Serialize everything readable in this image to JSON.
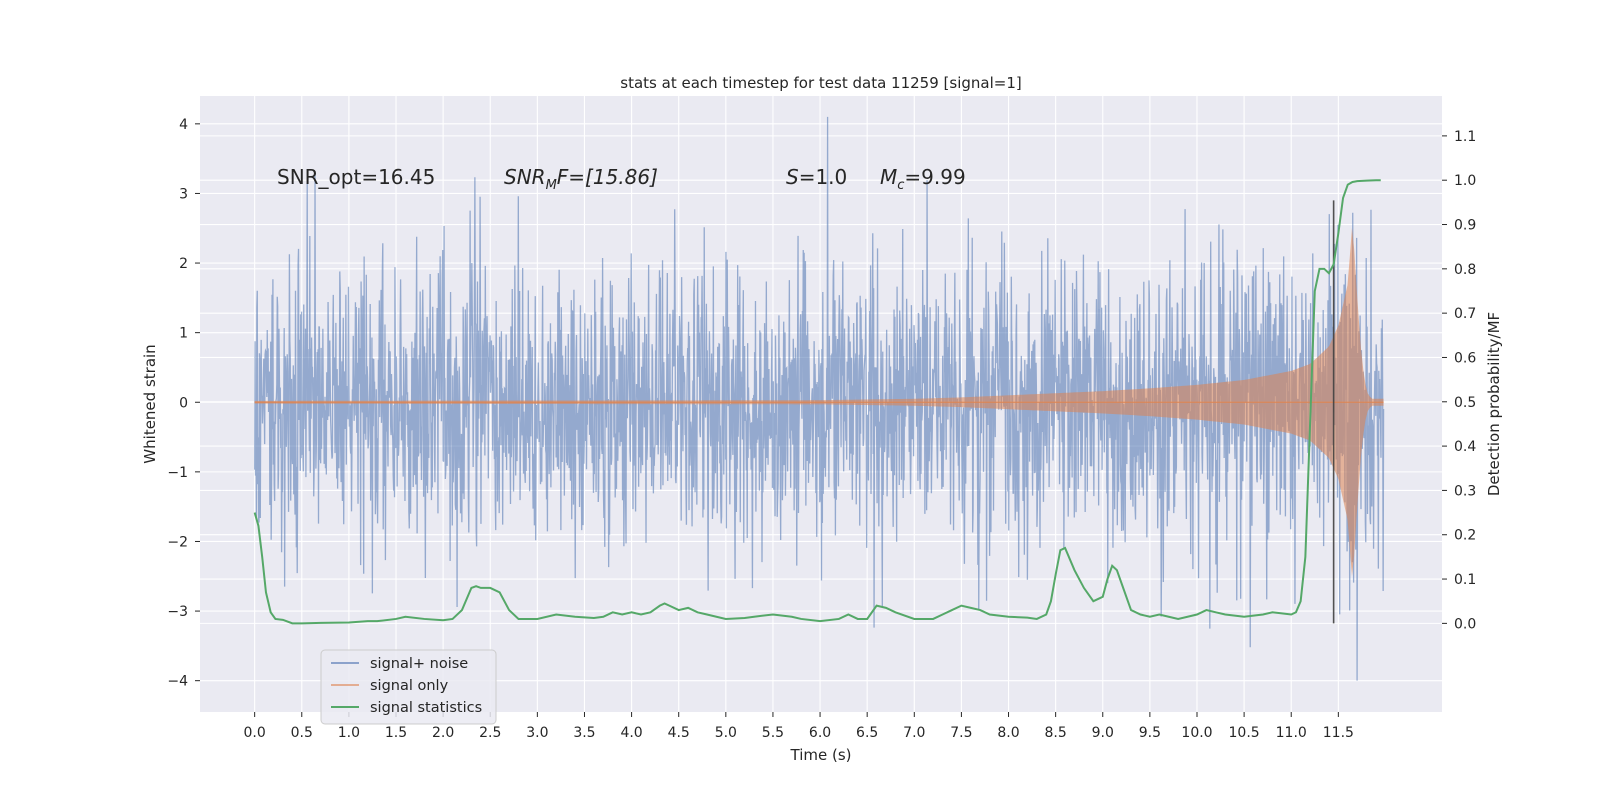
{
  "chart_data": {
    "type": "line",
    "title": "stats at each timestep for test data 11259 [signal=1]",
    "xlabel": "Time (s)",
    "ylabel_left": "Whitened strain",
    "ylabel_right": "Detection probability/MF",
    "xlim": [
      -0.58,
      12.6
    ],
    "ylim_left": [
      -4.45,
      4.4
    ],
    "ylim_right": [
      -0.2,
      1.19
    ],
    "grid": true,
    "legend_position": "lower-left",
    "x_ticks": [
      "0.0",
      "0.5",
      "1.0",
      "1.5",
      "2.0",
      "2.5",
      "3.0",
      "3.5",
      "4.0",
      "4.5",
      "5.0",
      "5.5",
      "6.0",
      "6.5",
      "7.0",
      "7.5",
      "8.0",
      "8.5",
      "9.0",
      "9.5",
      "10.0",
      "10.5",
      "11.0",
      "11.5"
    ],
    "y_ticks_left": [
      4,
      3,
      2,
      1,
      0,
      -1,
      -2,
      -3,
      -4
    ],
    "y_tick_labels_left": [
      "4",
      "3",
      "2",
      "1",
      "0",
      "−1",
      "−2",
      "−3",
      "−4"
    ],
    "y_ticks_right": [
      "1.1",
      "1.0",
      "0.9",
      "0.8",
      "0.7",
      "0.6",
      "0.5",
      "0.4",
      "0.3",
      "0.2",
      "0.1",
      "0.0"
    ],
    "annotations": {
      "snr_opt": "SNR_opt=16.45",
      "snr_mf_base": "SNR",
      "snr_mf_sub": "M",
      "snr_mf_rest": "F=[15.86]",
      "s_var": "S",
      "s_val": "=1.0",
      "mc_var": "M",
      "mc_sub": "c",
      "mc_val": "=9.99"
    },
    "marker_time": 11.45,
    "series": [
      {
        "name": "signal+ noise",
        "color": "#4c72b0",
        "x_range": [
          0.0,
          11.98
        ],
        "amplitude_envelope": {
          "typical_upper": 2.4,
          "typical_lower": -2.3,
          "max": 4.1,
          "min": -4.0
        }
      },
      {
        "name": "signal only",
        "color": "#dd8452",
        "x_range": [
          0.0,
          11.98
        ],
        "chirp_amplitude": [
          [
            0.0,
            0.02
          ],
          [
            6.0,
            0.03
          ],
          [
            7.0,
            0.05
          ],
          [
            7.5,
            0.07
          ],
          [
            8.0,
            0.1
          ],
          [
            8.5,
            0.13
          ],
          [
            9.0,
            0.16
          ],
          [
            9.5,
            0.2
          ],
          [
            10.0,
            0.25
          ],
          [
            10.5,
            0.32
          ],
          [
            11.0,
            0.45
          ],
          [
            11.2,
            0.55
          ],
          [
            11.4,
            0.8
          ],
          [
            11.5,
            1.1
          ],
          [
            11.6,
            1.7
          ],
          [
            11.65,
            2.6
          ],
          [
            11.7,
            1.5
          ],
          [
            11.75,
            0.6
          ],
          [
            11.8,
            0.15
          ],
          [
            11.85,
            0.05
          ]
        ]
      },
      {
        "name": "signal statistics",
        "color": "#55a868",
        "x": [
          0.0,
          0.04,
          0.08,
          0.12,
          0.17,
          0.22,
          0.3,
          0.4,
          0.5,
          0.7,
          1.0,
          1.2,
          1.3,
          1.5,
          1.6,
          1.8,
          2.0,
          2.1,
          2.2,
          2.3,
          2.35,
          2.4,
          2.5,
          2.6,
          2.7,
          2.8,
          2.9,
          3.0,
          3.2,
          3.4,
          3.6,
          3.7,
          3.8,
          3.9,
          4.0,
          4.1,
          4.2,
          4.3,
          4.35,
          4.4,
          4.5,
          4.6,
          4.7,
          4.8,
          4.9,
          5.0,
          5.2,
          5.3,
          5.5,
          5.7,
          5.8,
          6.0,
          6.2,
          6.3,
          6.4,
          6.5,
          6.6,
          6.7,
          6.8,
          7.0,
          7.1,
          7.2,
          7.3,
          7.4,
          7.5,
          7.6,
          7.7,
          7.8,
          8.0,
          8.2,
          8.3,
          8.4,
          8.45,
          8.5,
          8.55,
          8.6,
          8.7,
          8.8,
          8.9,
          9.0,
          9.05,
          9.1,
          9.15,
          9.2,
          9.3,
          9.4,
          9.5,
          9.6,
          9.7,
          9.8,
          9.9,
          10.0,
          10.1,
          10.2,
          10.3,
          10.5,
          10.7,
          10.8,
          11.0,
          11.05,
          11.1,
          11.15,
          11.2,
          11.25,
          11.3,
          11.35,
          11.4,
          11.45,
          11.5,
          11.55,
          11.6,
          11.65,
          11.7,
          11.8,
          11.9,
          11.95
        ],
        "y": [
          0.25,
          0.22,
          0.15,
          0.07,
          0.025,
          0.01,
          0.008,
          0.0,
          0.0,
          0.001,
          0.002,
          0.005,
          0.005,
          0.01,
          0.015,
          0.01,
          0.007,
          0.01,
          0.03,
          0.08,
          0.084,
          0.08,
          0.08,
          0.07,
          0.03,
          0.01,
          0.01,
          0.01,
          0.02,
          0.015,
          0.012,
          0.015,
          0.025,
          0.02,
          0.025,
          0.02,
          0.025,
          0.04,
          0.045,
          0.04,
          0.03,
          0.035,
          0.025,
          0.02,
          0.015,
          0.01,
          0.012,
          0.015,
          0.02,
          0.015,
          0.01,
          0.005,
          0.01,
          0.02,
          0.01,
          0.01,
          0.04,
          0.035,
          0.025,
          0.01,
          0.01,
          0.01,
          0.02,
          0.03,
          0.04,
          0.035,
          0.03,
          0.02,
          0.015,
          0.013,
          0.01,
          0.02,
          0.05,
          0.11,
          0.165,
          0.17,
          0.12,
          0.08,
          0.05,
          0.06,
          0.1,
          0.13,
          0.12,
          0.09,
          0.03,
          0.02,
          0.015,
          0.02,
          0.015,
          0.01,
          0.015,
          0.02,
          0.03,
          0.025,
          0.02,
          0.015,
          0.02,
          0.025,
          0.02,
          0.025,
          0.05,
          0.15,
          0.45,
          0.75,
          0.8,
          0.8,
          0.79,
          0.81,
          0.88,
          0.96,
          0.99,
          0.996,
          0.998,
          0.999,
          1.0,
          1.0
        ]
      }
    ]
  }
}
